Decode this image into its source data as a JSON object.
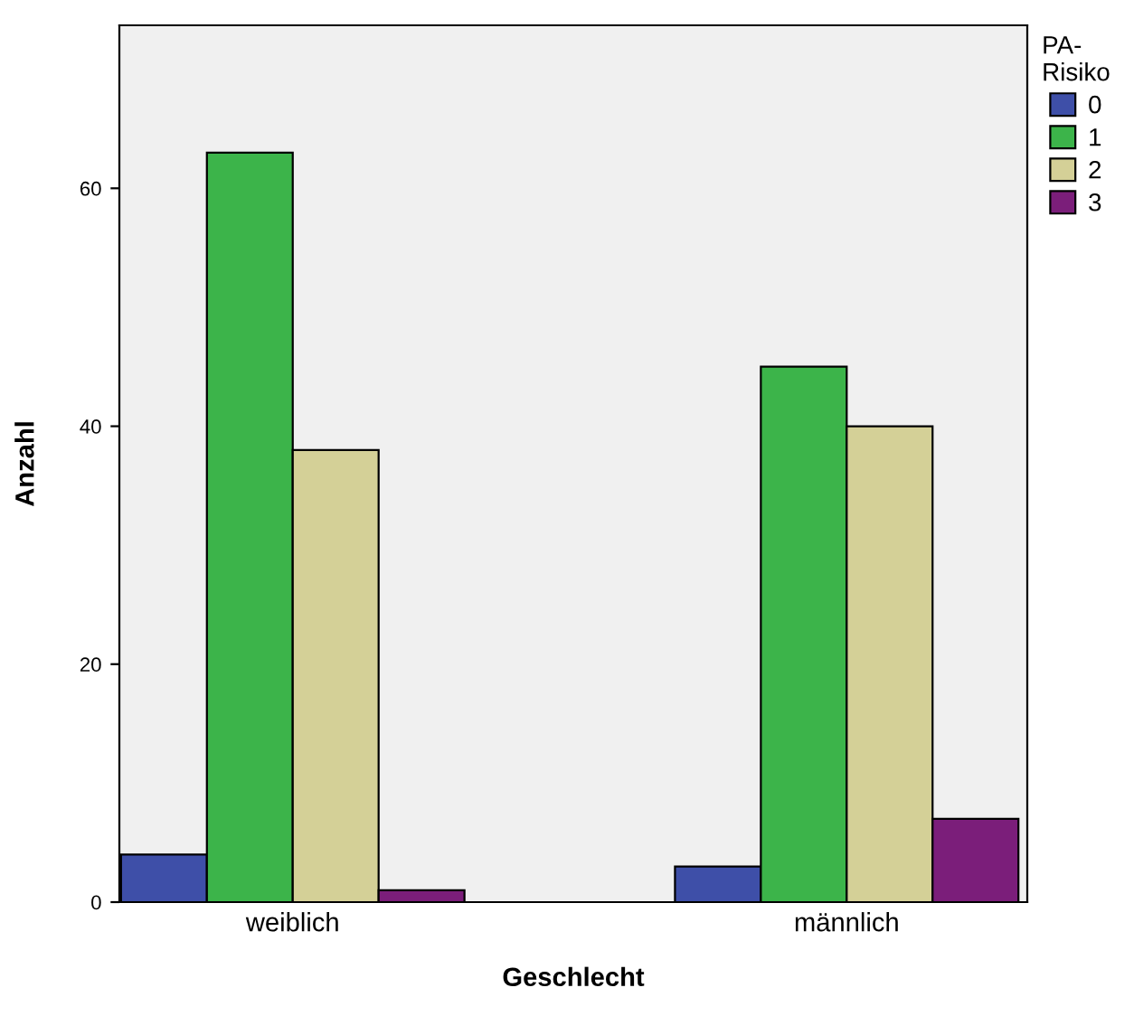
{
  "chart_data": {
    "type": "bar",
    "xlabel": "Geschlecht",
    "ylabel": "Anzahl",
    "legend_title": "PA-\nRisiko",
    "categories": [
      "weiblich",
      "männlich"
    ],
    "series": [
      {
        "name": "0",
        "color": "#3e4fa8",
        "values": [
          4,
          3
        ]
      },
      {
        "name": "1",
        "color": "#3cb44a",
        "values": [
          63,
          45
        ]
      },
      {
        "name": "2",
        "color": "#d4d097",
        "values": [
          38,
          40
        ]
      },
      {
        "name": "3",
        "color": "#7b1e7a",
        "values": [
          1,
          7
        ]
      }
    ],
    "ylim": [
      0,
      73.7
    ],
    "yticks": [
      0,
      20,
      40,
      60
    ],
    "grid": false,
    "legend": "right"
  }
}
